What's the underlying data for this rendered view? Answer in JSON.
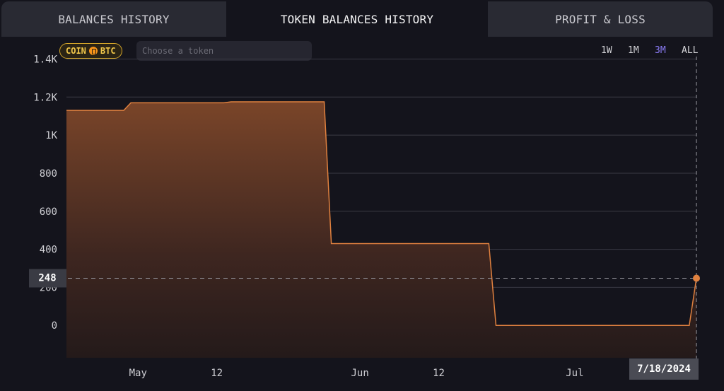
{
  "tabs": [
    {
      "label": "BALANCES HISTORY",
      "active": false
    },
    {
      "label": "TOKEN BALANCES HISTORY",
      "active": true
    },
    {
      "label": "PROFIT & LOSS",
      "active": false
    }
  ],
  "filter": {
    "chip_coin": "COIN",
    "chip_token": "BTC",
    "placeholder": "Choose a token"
  },
  "ranges": {
    "w1": "1W",
    "m1": "1M",
    "m3": "3M",
    "all": "ALL",
    "active": "3M"
  },
  "colors": {
    "accent": "#e0813f",
    "range_active": "#8b7cf6",
    "chip_border": "#d4a52a"
  },
  "cursor": {
    "value_label": "248",
    "date_label": "7/18/2024"
  },
  "chart_data": {
    "type": "area",
    "title": "",
    "xlabel": "",
    "ylabel": "",
    "ylim": [
      -170,
      1450
    ],
    "xlim": [
      "2024-04-21",
      "2024-07-18"
    ],
    "y_ticks": [
      0,
      200,
      400,
      600,
      800,
      1000,
      1200,
      1400
    ],
    "y_tick_labels": [
      "0",
      "200",
      "400",
      "600",
      "800",
      "1K",
      "1.2K",
      "1.4K"
    ],
    "x_ticks": [
      {
        "date": "2024-05-01",
        "label": "May"
      },
      {
        "date": "2024-05-12",
        "label": "12"
      },
      {
        "date": "2024-06-01",
        "label": "Jun"
      },
      {
        "date": "2024-06-12",
        "label": "12"
      },
      {
        "date": "2024-07-01",
        "label": "Jul"
      }
    ],
    "grid": true,
    "series": [
      {
        "points": [
          {
            "x": "2024-04-21",
            "y": 1130
          },
          {
            "x": "2024-04-29",
            "y": 1130
          },
          {
            "x": "2024-04-30",
            "y": 1170
          },
          {
            "x": "2024-05-13",
            "y": 1170
          },
          {
            "x": "2024-05-14",
            "y": 1175
          },
          {
            "x": "2024-05-27",
            "y": 1175
          },
          {
            "x": "2024-05-28",
            "y": 430
          },
          {
            "x": "2024-06-19",
            "y": 430
          },
          {
            "x": "2024-06-20",
            "y": 0
          },
          {
            "x": "2024-07-17",
            "y": 0
          },
          {
            "x": "2024-07-18",
            "y": 248
          }
        ]
      }
    ],
    "highlight": {
      "x": "2024-07-18",
      "y": 248
    }
  }
}
